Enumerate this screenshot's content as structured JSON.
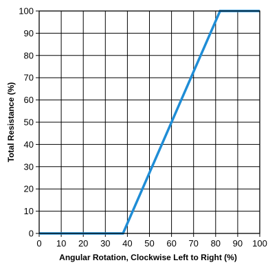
{
  "chart_data": {
    "type": "line",
    "title": "",
    "xlabel": "Angular Rotation, Clockwise Left to Right (%)",
    "ylabel": "Total Resistance (%)",
    "xlim": [
      0,
      100
    ],
    "ylim": [
      0,
      100
    ],
    "x_ticks": [
      0,
      10,
      20,
      30,
      40,
      50,
      60,
      70,
      80,
      90,
      100
    ],
    "y_ticks": [
      0,
      10,
      20,
      30,
      40,
      50,
      60,
      70,
      80,
      90,
      100
    ],
    "grid": true,
    "series": [
      {
        "color": "#1f8dd6",
        "points": [
          [
            0,
            0
          ],
          [
            38,
            0
          ],
          [
            82,
            100
          ],
          [
            100,
            100
          ]
        ]
      }
    ]
  }
}
